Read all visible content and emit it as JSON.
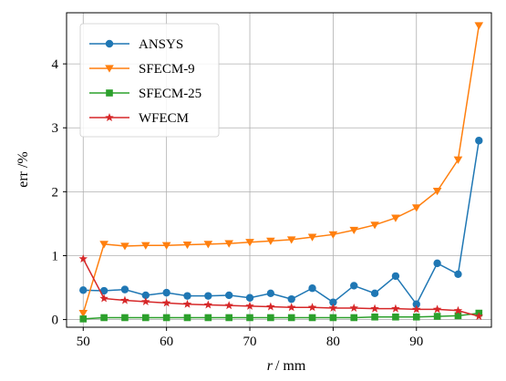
{
  "chart_data": {
    "type": "line",
    "title": "",
    "xlabel_var": "r",
    "xlabel_unit": "/ mm",
    "ylabel": "err /%",
    "xlim": [
      48,
      99
    ],
    "ylim": [
      -0.12,
      4.8
    ],
    "xticks": [
      50,
      60,
      70,
      80,
      90
    ],
    "yticks": [
      0,
      1,
      2,
      3,
      4
    ],
    "grid": true,
    "legend_position": "top-left",
    "x": [
      50,
      52.5,
      55,
      57.5,
      60,
      62.5,
      65,
      67.5,
      70,
      72.5,
      75,
      77.5,
      80,
      82.5,
      85,
      87.5,
      90,
      92.5,
      95,
      97.5
    ],
    "series": [
      {
        "name": "ANSYS",
        "color": "#1f77b4",
        "marker": "circle",
        "values": [
          0.46,
          0.45,
          0.47,
          0.38,
          0.42,
          0.37,
          0.37,
          0.38,
          0.34,
          0.41,
          0.32,
          0.49,
          0.27,
          0.53,
          0.41,
          0.68,
          0.24,
          0.88,
          0.71,
          2.8
        ]
      },
      {
        "name": "SFECM-9",
        "color": "#ff7f0e",
        "marker": "triangle-down",
        "values": [
          0.1,
          1.18,
          1.15,
          1.16,
          1.16,
          1.17,
          1.18,
          1.19,
          1.21,
          1.23,
          1.25,
          1.29,
          1.33,
          1.4,
          1.48,
          1.59,
          1.75,
          2.01,
          2.5,
          4.6
        ]
      },
      {
        "name": "SFECM-25",
        "color": "#2ca02c",
        "marker": "square",
        "values": [
          0.01,
          0.03,
          0.03,
          0.03,
          0.03,
          0.03,
          0.03,
          0.03,
          0.03,
          0.03,
          0.03,
          0.03,
          0.03,
          0.03,
          0.04,
          0.04,
          0.04,
          0.05,
          0.06,
          0.1
        ]
      },
      {
        "name": "WFECM",
        "color": "#d62728",
        "marker": "star",
        "values": [
          0.95,
          0.33,
          0.3,
          0.28,
          0.26,
          0.24,
          0.23,
          0.22,
          0.21,
          0.2,
          0.19,
          0.19,
          0.18,
          0.18,
          0.17,
          0.17,
          0.16,
          0.16,
          0.14,
          0.05
        ]
      }
    ]
  }
}
